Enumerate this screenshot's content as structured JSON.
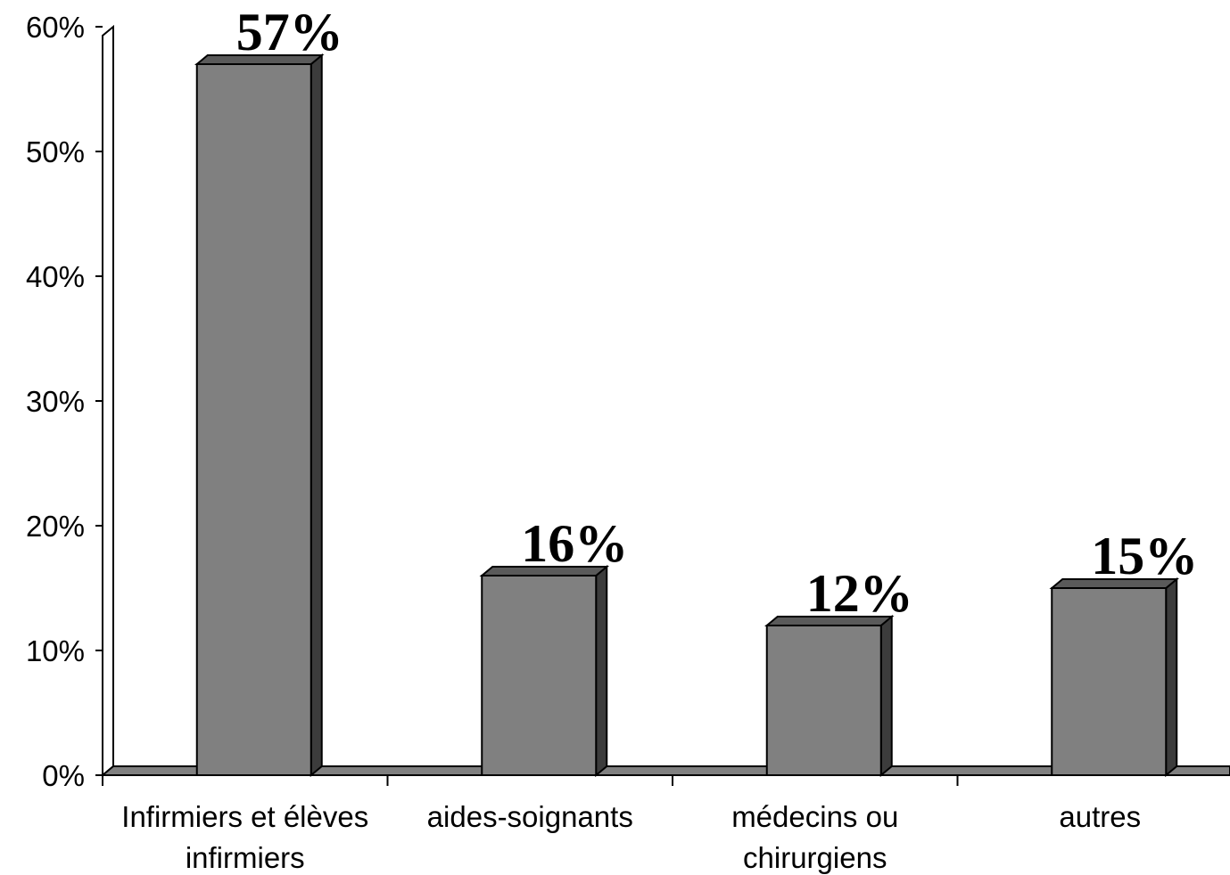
{
  "chart_data": {
    "type": "bar",
    "categories": [
      [
        "Infirmiers et élèves",
        "infirmiers"
      ],
      [
        "aides-soignants"
      ],
      [
        "médecins ou",
        "chirurgiens"
      ],
      [
        "autres"
      ]
    ],
    "values": [
      57,
      16,
      12,
      15
    ],
    "data_labels": [
      "57%",
      "16%",
      "12%",
      "15%"
    ],
    "y_ticks": [
      "0%",
      "10%",
      "20%",
      "30%",
      "40%",
      "50%",
      "60%"
    ],
    "ylim": [
      0,
      60
    ],
    "title": "",
    "xlabel": "",
    "ylabel": "",
    "grid": false,
    "legend": false,
    "style": "3d",
    "colors": {
      "bar_front": "#808080",
      "bar_top": "#5a5a5a",
      "bar_side": "#3c3c3c",
      "floor": "#808080",
      "outline": "#000000"
    }
  }
}
